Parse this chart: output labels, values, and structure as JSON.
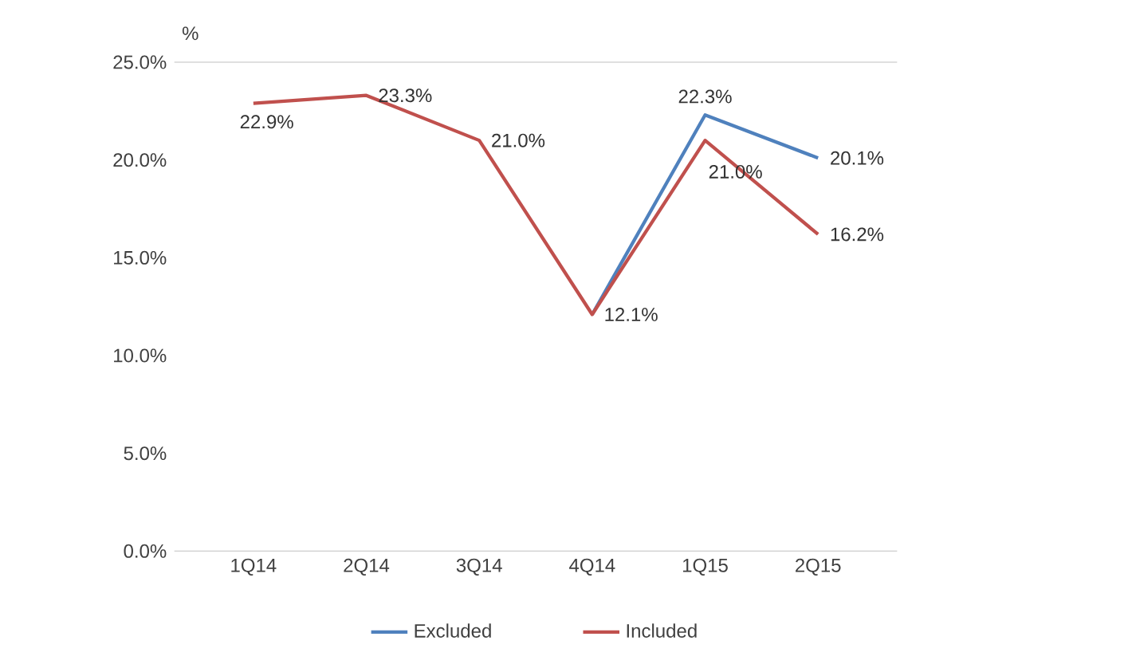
{
  "chart_data": {
    "type": "line",
    "ylabel": "%",
    "categories": [
      "1Q14",
      "2Q14",
      "3Q14",
      "4Q14",
      "1Q15",
      "2Q15"
    ],
    "series": [
      {
        "name": "Excluded",
        "color": "#4f81bd",
        "values": [
          null,
          null,
          null,
          12.1,
          22.3,
          20.1
        ],
        "value_labels": [
          null,
          null,
          null,
          null,
          "22.3%",
          "20.1%"
        ]
      },
      {
        "name": "Included",
        "color": "#c0504d",
        "values": [
          22.9,
          23.3,
          21.0,
          12.1,
          21.0,
          16.2
        ],
        "value_labels": [
          "22.9%",
          "23.3%",
          "21.0%",
          "12.1%",
          "21.0%",
          "16.2%"
        ]
      }
    ],
    "ylim": [
      0,
      25
    ],
    "yticks": [
      {
        "value": 0,
        "label": "0.0%"
      },
      {
        "value": 5,
        "label": "5.0%"
      },
      {
        "value": 10,
        "label": "10.0%"
      },
      {
        "value": 15,
        "label": "15.0%"
      },
      {
        "value": 20,
        "label": "20.0%"
      },
      {
        "value": 25,
        "label": "25.0%"
      }
    ],
    "grid": false,
    "legend": "bottom",
    "marker": "none",
    "line_style": "solid"
  }
}
